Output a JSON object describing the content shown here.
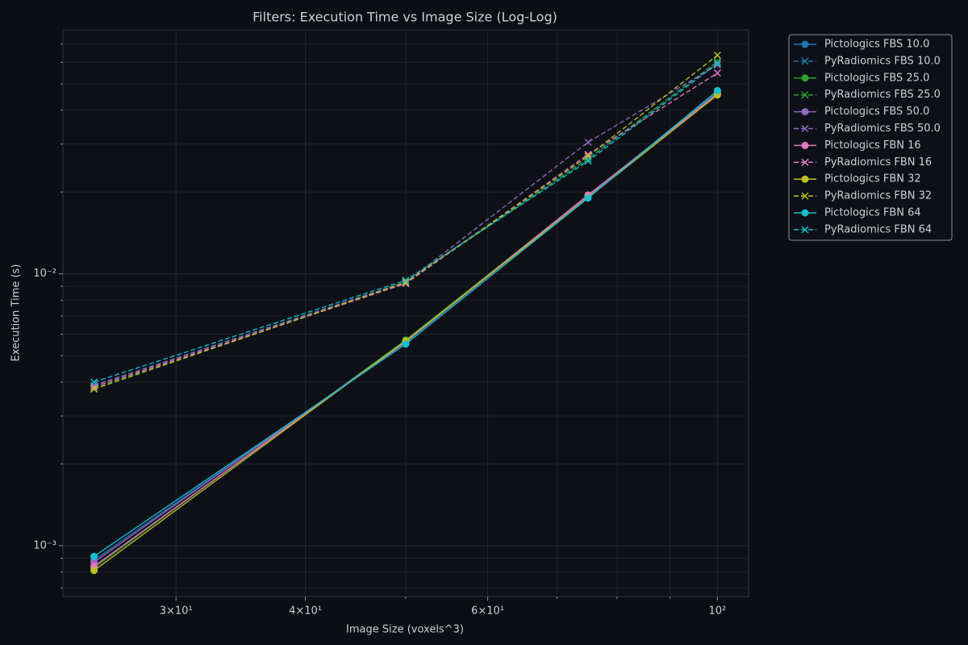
{
  "chart_data": {
    "type": "line",
    "title": "Filters: Execution Time vs Image Size (Log-Log)",
    "xlabel": "Image Size (voxels^3)",
    "ylabel": "Execution Time (s)",
    "x": [
      25,
      50,
      75,
      100
    ],
    "xscale": "log",
    "yscale": "log",
    "xlim": [
      23.33,
      107.18
    ],
    "ylim": [
      0.00065,
      0.079
    ],
    "xticks": [
      {
        "value": 30,
        "label": "3×10¹"
      },
      {
        "value": 40,
        "label": "4×10¹"
      },
      {
        "value": 60,
        "label": "6×10¹"
      },
      {
        "value": 100,
        "label": "10²"
      }
    ],
    "x_minor_ticks": [
      50,
      70,
      80,
      90
    ],
    "yticks": [
      {
        "value": 0.001,
        "label": "10⁻³"
      },
      {
        "value": 0.01,
        "label": "10⁻²"
      }
    ],
    "y_minor_ticks": [
      0.0007,
      0.0008,
      0.0009,
      0.002,
      0.003,
      0.004,
      0.005,
      0.006,
      0.007,
      0.008,
      0.009,
      0.02,
      0.03,
      0.04,
      0.05,
      0.06,
      0.07
    ],
    "grid": true,
    "legend": "outside-upper-right",
    "series": [
      {
        "name": "Pictologics FBS 10.0",
        "color": "#1f77b4",
        "linestyle": "solid",
        "marker": "o",
        "values": [
          0.000885,
          0.0056,
          0.0193,
          0.0469
        ]
      },
      {
        "name": "PyRadiomics FBS 10.0",
        "color": "#1f77b4",
        "linestyle": "dashed",
        "marker": "x",
        "values": [
          0.00389,
          0.00934,
          0.0266,
          0.0599
        ]
      },
      {
        "name": "Pictologics FBS 25.0",
        "color": "#2ca02c",
        "linestyle": "solid",
        "marker": "o",
        "values": [
          0.00083,
          0.00571,
          0.0194,
          0.0462
        ]
      },
      {
        "name": "PyRadiomics FBS 25.0",
        "color": "#2ca02c",
        "linestyle": "dashed",
        "marker": "x",
        "values": [
          0.00379,
          0.00934,
          0.0264,
          0.0604
        ]
      },
      {
        "name": "Pictologics FBS 50.0",
        "color": "#9467bd",
        "linestyle": "solid",
        "marker": "o",
        "values": [
          0.00087,
          0.00563,
          0.0193,
          0.0462
        ]
      },
      {
        "name": "PyRadiomics FBS 50.0",
        "color": "#9467bd",
        "linestyle": "dashed",
        "marker": "x",
        "values": [
          0.00389,
          0.0093,
          0.0305,
          0.0587
        ]
      },
      {
        "name": "Pictologics FBN 16",
        "color": "#e377c2",
        "linestyle": "solid",
        "marker": "o",
        "values": [
          0.00084,
          0.00563,
          0.0195,
          0.0458
        ]
      },
      {
        "name": "PyRadiomics FBN 16",
        "color": "#e377c2",
        "linestyle": "dashed",
        "marker": "x",
        "values": [
          0.00384,
          0.00921,
          0.0275,
          0.0548
        ]
      },
      {
        "name": "Pictologics FBN 32",
        "color": "#bcbd22",
        "linestyle": "solid",
        "marker": "o",
        "values": [
          0.000811,
          0.00567,
          0.0191,
          0.0455
        ]
      },
      {
        "name": "PyRadiomics FBN 32",
        "color": "#bcbd22",
        "linestyle": "dashed",
        "marker": "x",
        "values": [
          0.00377,
          0.0093,
          0.0271,
          0.0637
        ]
      },
      {
        "name": "Pictologics FBN 64",
        "color": "#17becf",
        "linestyle": "solid",
        "marker": "o",
        "values": [
          0.000914,
          0.00552,
          0.019,
          0.0472
        ]
      },
      {
        "name": "PyRadiomics FBN 64",
        "color": "#17becf",
        "linestyle": "dashed",
        "marker": "x",
        "values": [
          0.004,
          0.00947,
          0.026,
          0.0594
        ]
      }
    ]
  }
}
